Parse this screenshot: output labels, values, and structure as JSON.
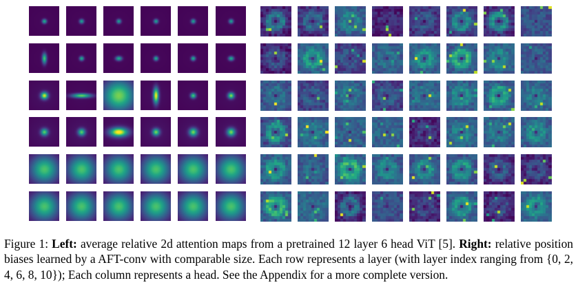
{
  "figure": {
    "panels": [
      {
        "name": "left",
        "rows": 6,
        "cols": 6,
        "colormap": "viridis",
        "tiles": [
          [
            {
              "sx": 0.05,
              "sy": 0.05,
              "amp": 0.6,
              "bg": 0.02
            },
            {
              "sx": 0.05,
              "sy": 0.05,
              "amp": 0.55,
              "bg": 0.02
            },
            {
              "sx": 0.05,
              "sy": 0.05,
              "amp": 0.55,
              "bg": 0.02
            },
            {
              "sx": 0.05,
              "sy": 0.05,
              "amp": 0.55,
              "bg": 0.02
            },
            {
              "sx": 0.05,
              "sy": 0.05,
              "amp": 0.55,
              "bg": 0.02
            },
            {
              "sx": 0.05,
              "sy": 0.05,
              "amp": 0.55,
              "bg": 0.02
            }
          ],
          [
            {
              "sx": 0.05,
              "sy": 0.12,
              "amp": 0.7,
              "bg": 0.02
            },
            {
              "sx": 0.05,
              "sy": 0.05,
              "amp": 0.6,
              "bg": 0.02
            },
            {
              "sx": 0.07,
              "sy": 0.05,
              "amp": 0.6,
              "bg": 0.02
            },
            {
              "sx": 0.05,
              "sy": 0.05,
              "amp": 0.6,
              "bg": 0.02
            },
            {
              "sx": 0.05,
              "sy": 0.05,
              "amp": 0.6,
              "bg": 0.02
            },
            {
              "sx": 0.06,
              "sy": 0.05,
              "amp": 0.6,
              "bg": 0.02
            }
          ],
          [
            {
              "sx": 0.08,
              "sy": 0.08,
              "amp": 0.9,
              "bg": 0.05
            },
            {
              "sx": 0.22,
              "sy": 0.05,
              "amp": 0.75,
              "bg": 0.03
            },
            {
              "sx": 0.35,
              "sy": 0.35,
              "amp": 0.7,
              "bg": 0.1
            },
            {
              "sx": 0.06,
              "sy": 0.18,
              "amp": 0.95,
              "bg": 0.04
            },
            {
              "sx": 0.06,
              "sy": 0.06,
              "amp": 0.7,
              "bg": 0.03
            },
            {
              "sx": 0.07,
              "sy": 0.07,
              "amp": 0.8,
              "bg": 0.04
            }
          ],
          [
            {
              "sx": 0.08,
              "sy": 0.08,
              "amp": 0.7,
              "bg": 0.06
            },
            {
              "sx": 0.08,
              "sy": 0.08,
              "amp": 0.7,
              "bg": 0.06
            },
            {
              "sx": 0.2,
              "sy": 0.1,
              "amp": 1.0,
              "bg": 0.06
            },
            {
              "sx": 0.08,
              "sy": 0.08,
              "amp": 0.75,
              "bg": 0.06
            },
            {
              "sx": 0.09,
              "sy": 0.09,
              "amp": 0.75,
              "bg": 0.06
            },
            {
              "sx": 0.09,
              "sy": 0.09,
              "amp": 0.75,
              "bg": 0.06
            }
          ],
          [
            {
              "sx": 0.3,
              "sy": 0.3,
              "amp": 0.6,
              "bg": 0.12
            },
            {
              "sx": 0.3,
              "sy": 0.3,
              "amp": 0.6,
              "bg": 0.12
            },
            {
              "sx": 0.3,
              "sy": 0.3,
              "amp": 0.6,
              "bg": 0.12
            },
            {
              "sx": 0.3,
              "sy": 0.3,
              "amp": 0.6,
              "bg": 0.12
            },
            {
              "sx": 0.3,
              "sy": 0.3,
              "amp": 0.6,
              "bg": 0.12
            },
            {
              "sx": 0.3,
              "sy": 0.3,
              "amp": 0.6,
              "bg": 0.12
            }
          ],
          [
            {
              "sx": 0.3,
              "sy": 0.3,
              "amp": 0.6,
              "bg": 0.12
            },
            {
              "sx": 0.3,
              "sy": 0.3,
              "amp": 0.6,
              "bg": 0.12
            },
            {
              "sx": 0.3,
              "sy": 0.3,
              "amp": 0.6,
              "bg": 0.12
            },
            {
              "sx": 0.3,
              "sy": 0.3,
              "amp": 0.6,
              "bg": 0.12
            },
            {
              "sx": 0.3,
              "sy": 0.3,
              "amp": 0.6,
              "bg": 0.12
            },
            {
              "sx": 0.3,
              "sy": 0.3,
              "amp": 0.6,
              "bg": 0.12
            }
          ]
        ]
      },
      {
        "name": "right",
        "rows": 6,
        "cols": 8,
        "colormap": "viridis",
        "grid": 11
      }
    ]
  },
  "caption": {
    "label": "Figure 1: ",
    "left_bold": "Left:",
    "left_text": " average relative 2d attention maps from a pretrained 12 layer 6 head ViT [5]. ",
    "right_bold": "Right:",
    "right_text": " relative position biases learned by a AFT-conv with comparable size. Each row represents a layer (with layer index ranging from {0, 2, 4, 6, 8, 10}); Each column represents a head. See the Appendix for a more complete version."
  }
}
